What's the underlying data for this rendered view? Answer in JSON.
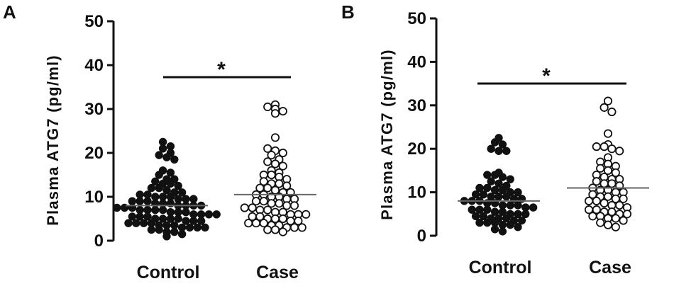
{
  "chart_data": [
    {
      "type": "scatter",
      "panel_label": "A",
      "ylabel": "Plasma ATG7 (pg/ml)",
      "ylim": [
        0,
        50
      ],
      "yticks": [
        "0",
        "10",
        "20",
        "30",
        "40",
        "50"
      ],
      "categories": [
        "Control",
        "Case"
      ],
      "significance": "*",
      "series": [
        {
          "marker": "filled",
          "mean": 8,
          "values": [
            22.5,
            21.5,
            21,
            20,
            19.5,
            19,
            18.5,
            16,
            15.5,
            15,
            14,
            14,
            13.5,
            13,
            13,
            12.5,
            12,
            12,
            11.5,
            11,
            11,
            10.5,
            10.5,
            10,
            10,
            10,
            9.5,
            9.5,
            9.5,
            9,
            9,
            9,
            8.5,
            8.5,
            8.5,
            8,
            8,
            8,
            8,
            7.5,
            7.5,
            7.5,
            7,
            7,
            7,
            7,
            6.5,
            6.5,
            6.5,
            6,
            6,
            6,
            6,
            5.5,
            5.5,
            5.5,
            5,
            5,
            5,
            5,
            4.5,
            4.5,
            4.5,
            4,
            4,
            4,
            4,
            3.5,
            3.5,
            3.5,
            3,
            3,
            3,
            3,
            2.5,
            2.5,
            2,
            2,
            1.5,
            1
          ]
        },
        {
          "marker": "open",
          "mean": 10.5,
          "values": [
            31,
            30.5,
            30,
            29.5,
            29,
            23.5,
            21,
            20.5,
            20,
            19.5,
            18.5,
            18,
            17.5,
            17,
            16,
            15.5,
            15,
            15,
            14.5,
            14,
            13.5,
            13,
            13,
            12.5,
            12,
            12,
            11.5,
            11,
            11,
            10.5,
            10.5,
            10,
            10,
            9.5,
            9.5,
            9,
            9,
            8.5,
            8.5,
            8,
            8,
            7.5,
            7.5,
            7,
            7,
            6.5,
            6.5,
            6,
            6,
            6,
            5.5,
            5.5,
            5,
            5,
            5,
            4.5,
            4.5,
            4,
            4,
            4,
            3.5,
            3.5,
            3,
            3,
            3,
            2.5,
            2.5,
            2
          ]
        }
      ]
    },
    {
      "type": "scatter",
      "panel_label": "B",
      "ylabel": "Plasma ATG7 (pg/ml)",
      "ylim": [
        0,
        50
      ],
      "yticks": [
        "0",
        "10",
        "20",
        "30",
        "40",
        "50"
      ],
      "categories": [
        "Control",
        "Case"
      ],
      "significance": "*",
      "series": [
        {
          "marker": "filled",
          "mean": 8,
          "values": [
            22.5,
            21.5,
            21,
            20,
            19.5,
            19.5,
            14.5,
            14,
            14,
            13.5,
            13,
            12.5,
            12,
            11.5,
            11,
            11,
            10.5,
            10.5,
            10,
            10,
            9.5,
            9.5,
            9,
            9,
            9,
            8.5,
            8.5,
            8,
            8,
            8,
            7.5,
            7.5,
            7,
            7,
            7,
            6.5,
            6.5,
            6,
            6,
            6,
            5.5,
            5.5,
            5,
            5,
            5,
            4.5,
            4.5,
            4,
            4,
            4,
            3.5,
            3.5,
            3,
            3,
            3,
            2.5,
            2.5,
            2,
            1.5,
            1
          ]
        },
        {
          "marker": "open",
          "mean": 11,
          "values": [
            31,
            29.5,
            28.5,
            23.5,
            21,
            20.5,
            20.5,
            20,
            19.5,
            18,
            17,
            16.5,
            16,
            15.5,
            15,
            14.5,
            14,
            13.5,
            13,
            13,
            12.5,
            12,
            12,
            11.5,
            11,
            10.5,
            10.5,
            10,
            10,
            9.5,
            9,
            9,
            8.5,
            8.5,
            8,
            8,
            7.5,
            7,
            7,
            6.5,
            6,
            6,
            5.5,
            5.5,
            5,
            5,
            4.5,
            4.5,
            4,
            4,
            3.5,
            3,
            2.5,
            2
          ]
        }
      ]
    }
  ]
}
